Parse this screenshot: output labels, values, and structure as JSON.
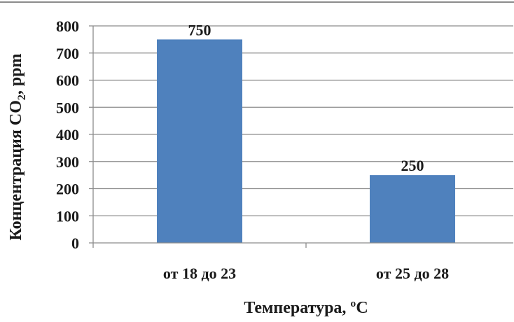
{
  "chart_data": {
    "type": "bar",
    "categories": [
      "от 18 до 23",
      "от 25 до 28"
    ],
    "values": [
      750,
      250
    ],
    "data_labels": [
      "750",
      "250"
    ],
    "xlabel": "Температура, ºС",
    "ylabel_main": "Концентрация СО",
    "ylabel_sub": "2",
    "ylabel_suffix": ", ppm",
    "ylim": [
      0,
      800
    ],
    "yticks": [
      0,
      100,
      200,
      300,
      400,
      500,
      600,
      700,
      800
    ],
    "grid": true,
    "legend": "none",
    "colors": {
      "bar": "#4f81bd",
      "grid": "#8c8c8c",
      "axis": "#8c8c8c",
      "frame": "#8c8c8c"
    }
  }
}
